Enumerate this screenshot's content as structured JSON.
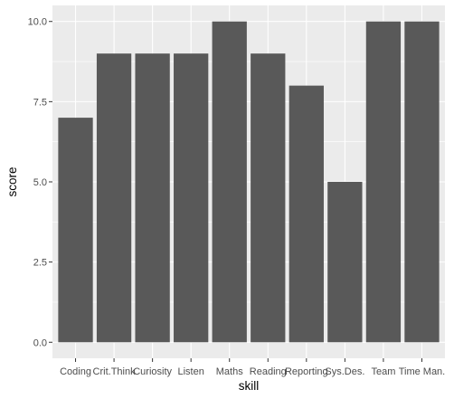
{
  "chart_data": {
    "type": "bar",
    "title": "",
    "xlabel": "skill",
    "ylabel": "score",
    "categories": [
      "Coding",
      "Crit.Think",
      "Curiosity",
      "Listen",
      "Maths",
      "Reading",
      "Reporting",
      "Sys.Des.",
      "Team",
      "Time Man."
    ],
    "values": [
      7,
      9,
      9,
      9,
      10,
      9,
      8,
      5,
      10,
      10
    ],
    "ylim": [
      0,
      10
    ],
    "yticks": [
      0,
      2.5,
      5,
      7.5,
      10
    ],
    "ytick_labels": [
      "0.0",
      "2.5",
      "5.0",
      "7.5",
      "10.0"
    ],
    "grid": true,
    "colors": {
      "panel": "#EBEBEB",
      "grid_major": "#FFFFFF",
      "bar": "#595959",
      "tick": "#333333"
    }
  }
}
